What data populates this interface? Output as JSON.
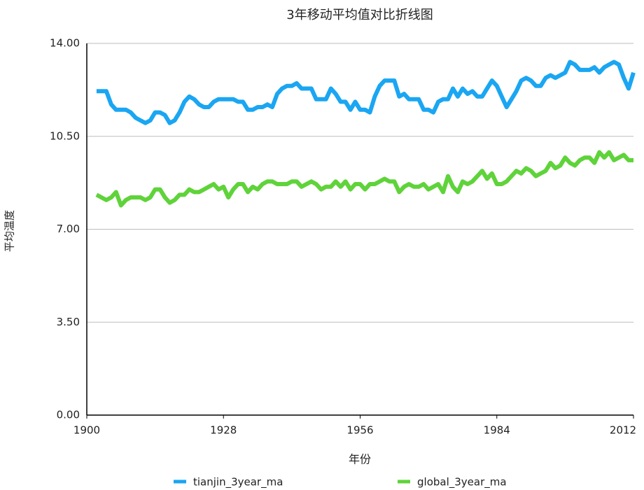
{
  "chart_data": {
    "type": "line",
    "title": "3年移动平均值对比折线图",
    "x_label": "年份",
    "y_label": "平均温度",
    "x": [
      1902,
      1903,
      1904,
      1905,
      1906,
      1907,
      1908,
      1909,
      1910,
      1911,
      1912,
      1913,
      1914,
      1915,
      1916,
      1917,
      1918,
      1919,
      1920,
      1921,
      1922,
      1923,
      1924,
      1925,
      1926,
      1927,
      1928,
      1929,
      1930,
      1931,
      1932,
      1933,
      1934,
      1935,
      1936,
      1937,
      1938,
      1939,
      1940,
      1941,
      1942,
      1943,
      1944,
      1945,
      1946,
      1947,
      1948,
      1949,
      1950,
      1951,
      1952,
      1953,
      1954,
      1955,
      1956,
      1957,
      1958,
      1959,
      1960,
      1961,
      1962,
      1963,
      1964,
      1965,
      1966,
      1967,
      1968,
      1969,
      1970,
      1971,
      1972,
      1973,
      1974,
      1975,
      1976,
      1977,
      1978,
      1979,
      1980,
      1981,
      1982,
      1983,
      1984,
      1985,
      1986,
      1987,
      1988,
      1989,
      1990,
      1991,
      1992,
      1993,
      1994,
      1995,
      1996,
      1997,
      1998,
      1999,
      2000,
      2001,
      2002,
      2003,
      2004,
      2005,
      2006,
      2007,
      2008,
      2009,
      2010,
      2011,
      2012
    ],
    "series": [
      {
        "name": "tianjin_3year_ma",
        "color": "#1aa6f2",
        "values": [
          12.2,
          12.2,
          12.2,
          11.7,
          11.5,
          11.5,
          11.5,
          11.4,
          11.2,
          11.1,
          11.0,
          11.1,
          11.4,
          11.4,
          11.3,
          11.0,
          11.1,
          11.4,
          11.8,
          12.0,
          11.9,
          11.7,
          11.6,
          11.6,
          11.8,
          11.9,
          11.9,
          11.9,
          11.9,
          11.8,
          11.8,
          11.5,
          11.5,
          11.6,
          11.6,
          11.7,
          11.6,
          12.1,
          12.3,
          12.4,
          12.4,
          12.5,
          12.3,
          12.3,
          12.3,
          11.9,
          11.9,
          11.9,
          12.3,
          12.1,
          11.8,
          11.8,
          11.5,
          11.8,
          11.5,
          11.5,
          11.4,
          12.0,
          12.4,
          12.6,
          12.6,
          12.6,
          12.0,
          12.1,
          11.9,
          11.9,
          11.9,
          11.5,
          11.5,
          11.4,
          11.8,
          11.9,
          11.9,
          12.3,
          12.0,
          12.3,
          12.1,
          12.2,
          12.0,
          12.0,
          12.3,
          12.6,
          12.4,
          12.0,
          11.6,
          11.9,
          12.2,
          12.6,
          12.7,
          12.6,
          12.4,
          12.4,
          12.7,
          12.8,
          12.7,
          12.8,
          12.9,
          13.3,
          13.2,
          13.0,
          13.0,
          13.0,
          13.1,
          12.9,
          13.1,
          13.2,
          13.3,
          13.2,
          12.7,
          12.3,
          12.9
        ]
      },
      {
        "name": "global_3year_ma",
        "color": "#5fd33a",
        "values": [
          8.3,
          8.2,
          8.1,
          8.2,
          8.4,
          7.9,
          8.1,
          8.2,
          8.2,
          8.2,
          8.1,
          8.2,
          8.5,
          8.5,
          8.2,
          8.0,
          8.1,
          8.3,
          8.3,
          8.5,
          8.4,
          8.4,
          8.5,
          8.6,
          8.7,
          8.5,
          8.6,
          8.2,
          8.5,
          8.7,
          8.7,
          8.4,
          8.6,
          8.5,
          8.7,
          8.8,
          8.8,
          8.7,
          8.7,
          8.7,
          8.8,
          8.8,
          8.6,
          8.7,
          8.8,
          8.7,
          8.5,
          8.6,
          8.6,
          8.8,
          8.6,
          8.8,
          8.5,
          8.7,
          8.7,
          8.5,
          8.7,
          8.7,
          8.8,
          8.9,
          8.8,
          8.8,
          8.4,
          8.6,
          8.7,
          8.6,
          8.6,
          8.7,
          8.5,
          8.6,
          8.7,
          8.4,
          9.0,
          8.6,
          8.4,
          8.8,
          8.7,
          8.8,
          9.0,
          9.2,
          8.9,
          9.1,
          8.7,
          8.7,
          8.8,
          9.0,
          9.2,
          9.1,
          9.3,
          9.2,
          9.0,
          9.1,
          9.2,
          9.5,
          9.3,
          9.4,
          9.7,
          9.5,
          9.4,
          9.6,
          9.7,
          9.7,
          9.5,
          9.9,
          9.7,
          9.9,
          9.6,
          9.7,
          9.8,
          9.6,
          9.6
        ]
      }
    ],
    "xlim": [
      1900,
      2012
    ],
    "xticks": [
      1900,
      1928,
      1956,
      1984,
      2012
    ],
    "ylim": [
      0,
      14
    ],
    "yticks": [
      {
        "value": 0,
        "label": "0.00"
      },
      {
        "value": 3.5,
        "label": "3.50"
      },
      {
        "value": 7,
        "label": "7.00"
      },
      {
        "value": 10.5,
        "label": "10.50"
      },
      {
        "value": 14,
        "label": "14.00"
      }
    ],
    "grid": true,
    "legend": "bottom"
  }
}
